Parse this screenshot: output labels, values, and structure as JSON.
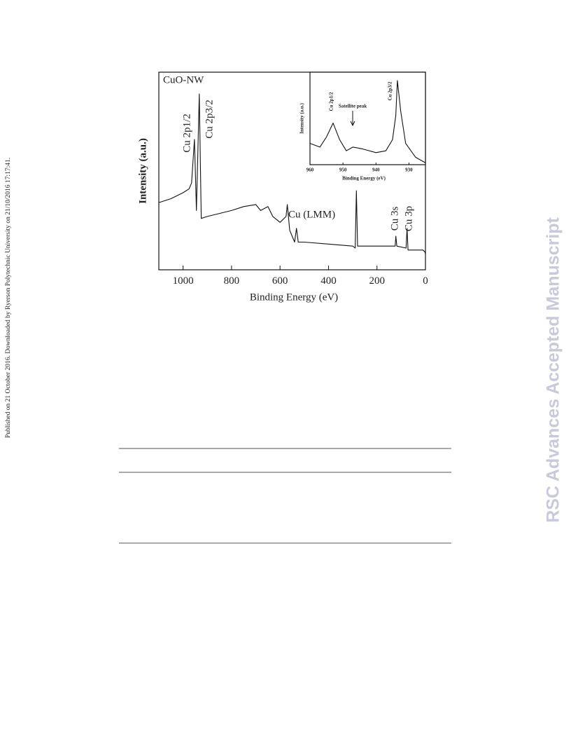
{
  "side_text": "Published on 21 October 2016. Downloaded by Ryerson Polytechnic University on 21/10/2016 17:17:41.",
  "watermark": "RSC Advances Accepted Manuscript",
  "chart_data": [
    {
      "type": "line",
      "title": "CuO-NW",
      "x_label": "Binding Energy (eV)",
      "y_label": "Intensity (a.u.)",
      "x": [
        1100,
        1050,
        1000,
        975,
        965,
        953,
        945,
        933,
        925,
        900,
        800,
        750,
        700,
        680,
        650,
        630,
        600,
        575,
        570,
        560,
        540,
        532,
        525,
        500,
        400,
        300,
        290,
        285,
        280,
        200,
        125,
        122,
        118,
        80,
        76,
        72,
        10,
        2,
        0
      ],
      "series": [
        {
          "color": "#111111",
          "values": [
            34,
            36,
            39,
            41,
            44,
            66,
            30,
            89,
            26,
            27,
            30,
            32,
            33,
            30,
            32,
            27,
            24,
            27,
            33,
            20,
            14,
            21,
            14,
            14,
            13,
            12,
            11,
            40,
            12,
            12,
            12,
            17,
            12,
            11,
            21,
            10,
            10,
            9,
            8
          ]
        }
      ],
      "xlim": [
        1100,
        0
      ],
      "ylim": [
        0,
        100
      ],
      "xticks": [
        1000,
        800,
        600,
        400,
        200,
        0
      ],
      "annotations": [
        "Cu 2p1/2",
        "Cu 2p3/2",
        "Cu (LMM)",
        "Cu 3s",
        "Cu 3p"
      ]
    },
    {
      "type": "line",
      "x_label": "Binding Energy (eV)",
      "y_label": "Intensity (a.u.)",
      "x": [
        960,
        957,
        955,
        953,
        951,
        949,
        947,
        944,
        940,
        937,
        935,
        934,
        933.5,
        932.5,
        931,
        928,
        925
      ],
      "series": [
        {
          "color": "#111111",
          "values": [
            23,
            19,
            30,
            45,
            27,
            15,
            19,
            17,
            13,
            15,
            27,
            53,
            91,
            58,
            23,
            8,
            2
          ]
        }
      ],
      "xlim": [
        960,
        925
      ],
      "ylim": [
        0,
        100
      ],
      "xticks": [
        960,
        950,
        940,
        930
      ],
      "annotations": [
        "Cu 2p1/2",
        "Cu 2p3/2",
        "Satellite peak"
      ]
    }
  ]
}
